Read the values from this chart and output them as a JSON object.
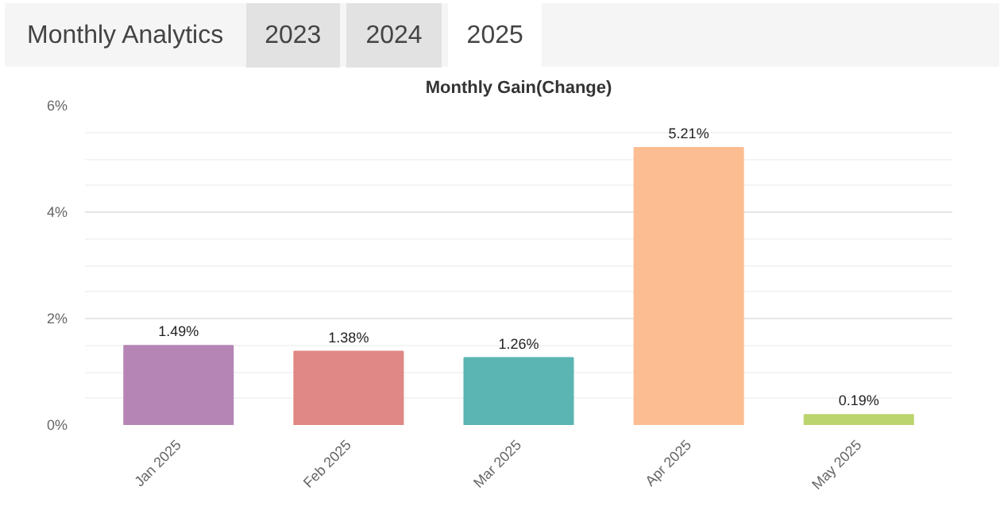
{
  "chart_data": {
    "type": "bar",
    "title": "Monthly Gain(Change)",
    "annotations": [
      "Monthly Analytics",
      "2023",
      "2024",
      "2025"
    ],
    "categories": [
      "Jan 2025",
      "Feb 2025",
      "Mar 2025",
      "Apr 2025",
      "May 2025"
    ],
    "values": [
      1.49,
      1.38,
      1.26,
      5.21,
      0.19
    ],
    "value_labels": [
      "1.49%",
      "1.38%",
      "1.26%",
      "5.21%",
      "0.19%"
    ],
    "colors": [
      "#b586b5",
      "#e08885",
      "#5ab5b3",
      "#fdbd92",
      "#bcd46e"
    ],
    "ylim": [
      0,
      6
    ],
    "yticks": [
      {
        "value": 0,
        "label": "0%"
      },
      {
        "value": 2,
        "label": "2%"
      },
      {
        "value": 4,
        "label": "4%"
      },
      {
        "value": 6,
        "label": "6%"
      }
    ],
    "grid": "y"
  }
}
